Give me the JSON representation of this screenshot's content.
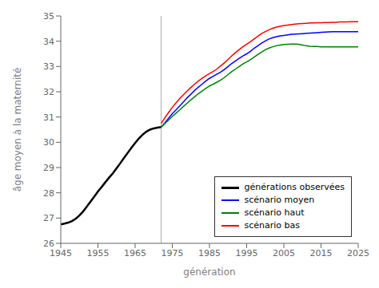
{
  "chart_data": {
    "type": "line",
    "title": "",
    "xlabel": "génération",
    "ylabel": "âge moyen à la maternité",
    "xlim": [
      1945,
      2025
    ],
    "ylim": [
      26,
      35
    ],
    "xticks": [
      1945,
      1955,
      1965,
      1975,
      1985,
      1995,
      2005,
      2015,
      2025
    ],
    "yticks": [
      26,
      27,
      28,
      29,
      30,
      31,
      32,
      33,
      34,
      35
    ],
    "grid": false,
    "legend": "lower right",
    "vlines": [
      {
        "x": 1972,
        "color": "#aaaaaa"
      }
    ],
    "x": [
      1945,
      1946,
      1947,
      1948,
      1949,
      1950,
      1951,
      1952,
      1953,
      1954,
      1955,
      1956,
      1957,
      1958,
      1959,
      1960,
      1961,
      1962,
      1963,
      1964,
      1965,
      1966,
      1967,
      1968,
      1969,
      1970,
      1971,
      1972,
      1973,
      1974,
      1975,
      1976,
      1977,
      1978,
      1979,
      1980,
      1981,
      1982,
      1983,
      1984,
      1985,
      1986,
      1987,
      1988,
      1989,
      1990,
      1991,
      1992,
      1993,
      1994,
      1995,
      1996,
      1997,
      1998,
      1999,
      2000,
      2001,
      2002,
      2003,
      2004,
      2005,
      2006,
      2007,
      2008,
      2009,
      2010,
      2011,
      2012,
      2013,
      2014,
      2015,
      2016,
      2017,
      2018,
      2019,
      2020,
      2021,
      2022,
      2023,
      2024,
      2025
    ],
    "series": [
      {
        "name": "générations observées",
        "color": "#000000",
        "values": [
          26.75,
          26.78,
          26.82,
          26.88,
          26.97,
          27.1,
          27.26,
          27.45,
          27.65,
          27.85,
          28.05,
          28.23,
          28.42,
          28.6,
          28.77,
          28.97,
          29.17,
          29.38,
          29.58,
          29.78,
          29.97,
          30.15,
          30.3,
          30.42,
          30.5,
          30.55,
          30.58,
          30.6,
          null,
          null,
          null,
          null,
          null,
          null,
          null,
          null,
          null,
          null,
          null,
          null,
          null,
          null,
          null,
          null,
          null,
          null,
          null,
          null,
          null,
          null,
          null,
          null,
          null,
          null,
          null,
          null,
          null,
          null,
          null,
          null,
          null,
          null,
          null,
          null,
          null,
          null,
          null,
          null,
          null,
          null,
          null,
          null,
          null,
          null,
          null,
          null,
          null,
          null,
          null,
          null,
          null
        ]
      },
      {
        "name": "scénario moyen",
        "color": "#0000ff",
        "values": [
          null,
          null,
          null,
          null,
          null,
          null,
          null,
          null,
          null,
          null,
          null,
          null,
          null,
          null,
          null,
          null,
          null,
          null,
          null,
          null,
          null,
          null,
          null,
          null,
          null,
          null,
          null,
          30.6,
          30.77,
          30.95,
          31.13,
          31.28,
          31.44,
          31.6,
          31.76,
          31.9,
          32.05,
          32.18,
          32.3,
          32.42,
          32.53,
          32.61,
          32.7,
          32.78,
          32.88,
          33.0,
          33.12,
          33.22,
          33.32,
          33.42,
          33.5,
          33.6,
          33.72,
          33.82,
          33.92,
          34.01,
          34.09,
          34.14,
          34.18,
          34.21,
          34.23,
          34.25,
          34.27,
          34.28,
          34.29,
          34.3,
          34.31,
          34.32,
          34.33,
          34.34,
          34.35,
          34.36,
          34.37,
          34.38,
          34.38,
          34.38,
          34.38,
          34.38,
          34.38,
          34.38,
          34.38
        ]
      },
      {
        "name": "scénario haut",
        "color": "#008000",
        "values": [
          null,
          null,
          null,
          null,
          null,
          null,
          null,
          null,
          null,
          null,
          null,
          null,
          null,
          null,
          null,
          null,
          null,
          null,
          null,
          null,
          null,
          null,
          null,
          null,
          null,
          null,
          null,
          30.6,
          30.74,
          30.88,
          31.02,
          31.15,
          31.28,
          31.42,
          31.55,
          31.68,
          31.8,
          31.92,
          32.03,
          32.13,
          32.23,
          32.3,
          32.38,
          32.46,
          32.56,
          32.68,
          32.8,
          32.9,
          33.0,
          33.1,
          33.18,
          33.27,
          33.37,
          33.47,
          33.57,
          33.66,
          33.73,
          33.78,
          33.82,
          33.85,
          33.87,
          33.88,
          33.89,
          33.89,
          33.88,
          33.85,
          33.82,
          33.8,
          33.79,
          33.79,
          33.78,
          33.78,
          33.78,
          33.78,
          33.78,
          33.78,
          33.78,
          33.78,
          33.78,
          33.78,
          33.78
        ]
      },
      {
        "name": "scénario bas",
        "color": "#ff0000",
        "values": [
          null,
          null,
          null,
          null,
          null,
          null,
          null,
          null,
          null,
          null,
          null,
          null,
          null,
          null,
          null,
          null,
          null,
          null,
          null,
          null,
          null,
          null,
          null,
          null,
          null,
          null,
          null,
          30.75,
          30.97,
          31.18,
          31.38,
          31.56,
          31.73,
          31.88,
          32.03,
          32.17,
          32.3,
          32.42,
          32.53,
          32.63,
          32.72,
          32.8,
          32.9,
          33.02,
          33.14,
          33.28,
          33.42,
          33.55,
          33.67,
          33.78,
          33.88,
          33.98,
          34.09,
          34.2,
          34.3,
          34.38,
          34.45,
          34.51,
          34.56,
          34.59,
          34.62,
          34.64,
          34.66,
          34.68,
          34.69,
          34.7,
          34.71,
          34.72,
          34.72,
          34.73,
          34.73,
          34.74,
          34.74,
          34.75,
          34.75,
          34.76,
          34.76,
          34.76,
          34.77,
          34.77,
          34.77
        ]
      }
    ]
  }
}
